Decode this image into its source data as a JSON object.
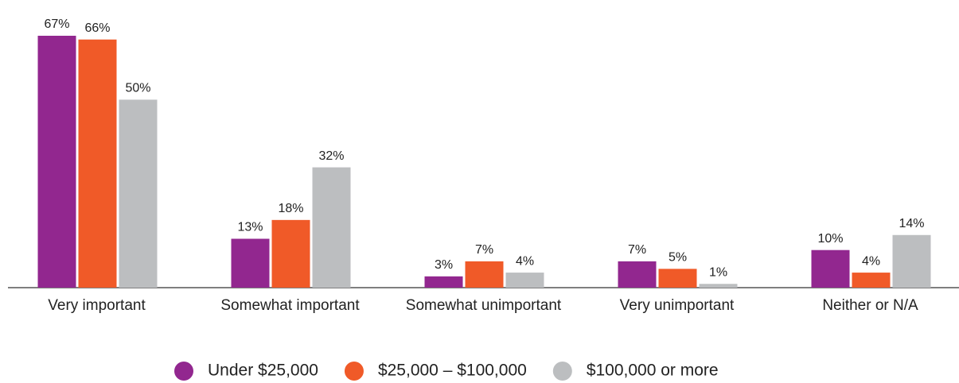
{
  "chart_data": {
    "type": "bar",
    "categories": [
      "Very important",
      "Somewhat important",
      "Somewhat unimportant",
      "Very unimportant",
      "Neither or N/A"
    ],
    "series": [
      {
        "name": "Under $25,000",
        "color": "#92278f",
        "values": [
          67,
          13,
          3,
          7,
          10
        ],
        "value_labels": [
          "67%",
          "13%",
          "3%",
          "7%",
          "10%"
        ]
      },
      {
        "name": "$25,000 – $100,000",
        "color": "#f05a28",
        "values": [
          66,
          18,
          7,
          5,
          4
        ],
        "value_labels": [
          "66%",
          "18%",
          "7%",
          "5%",
          "4%"
        ]
      },
      {
        "name": "$100,000 or more",
        "color": "#bcbec0",
        "values": [
          50,
          32,
          4,
          1,
          14
        ],
        "value_labels": [
          "50%",
          "32%",
          "4%",
          "1%",
          "14%"
        ]
      }
    ]
  }
}
